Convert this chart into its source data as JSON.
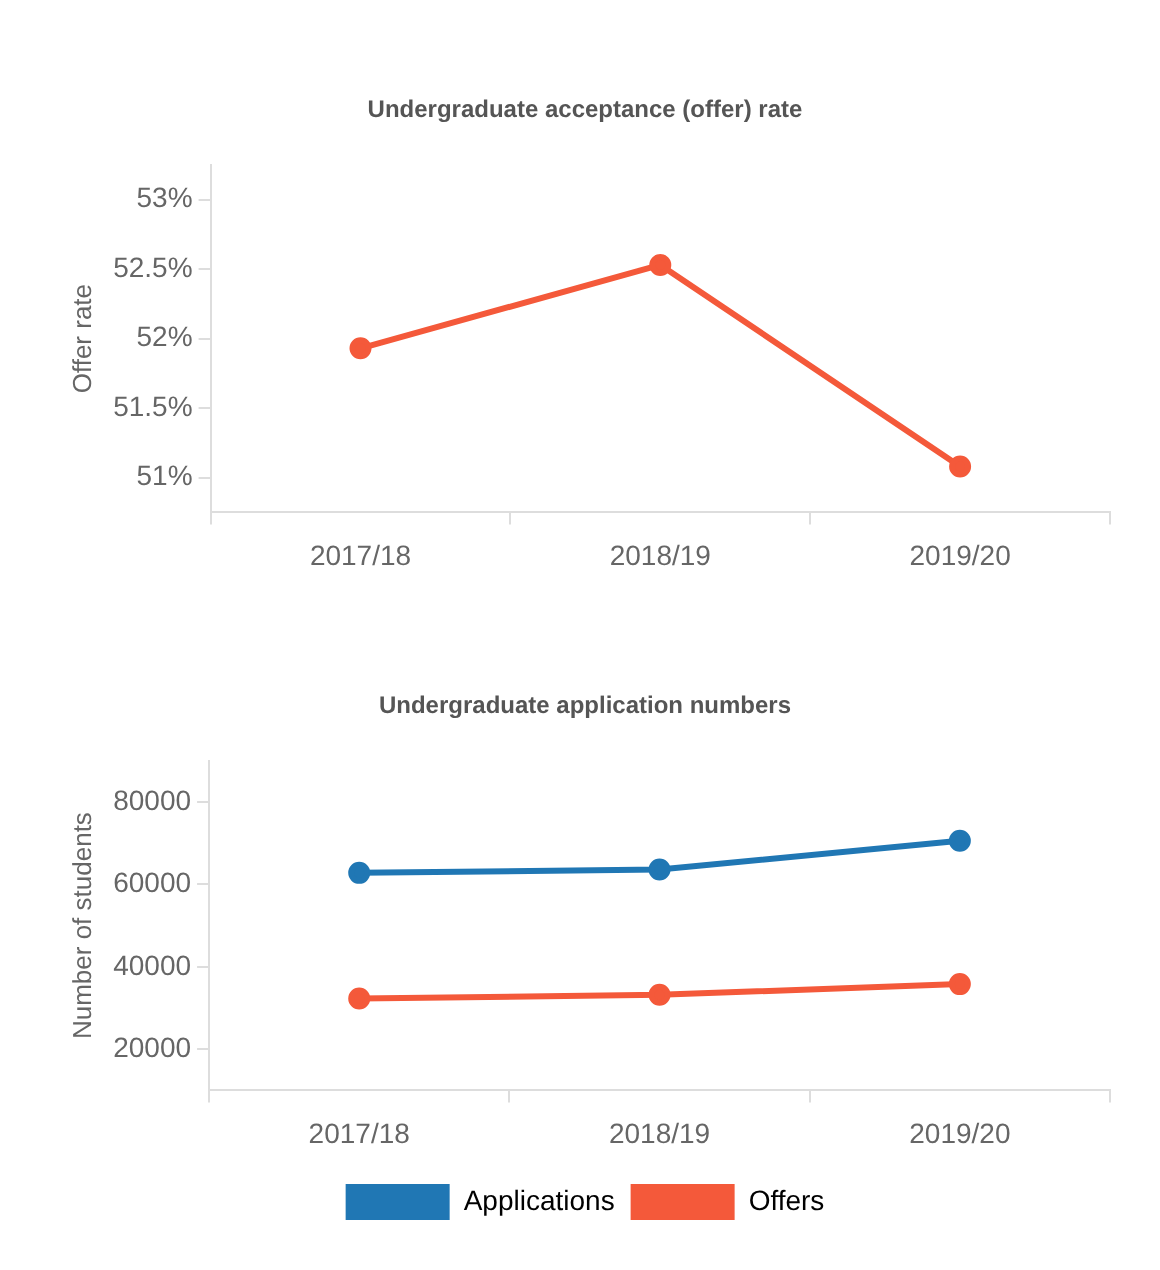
{
  "chart_data": [
    {
      "type": "line",
      "title": "Undergraduate acceptance (offer) rate",
      "ylabel": "Offer rate",
      "categories": [
        "2017/18",
        "2018/19",
        "2019/20"
      ],
      "series": [
        {
          "color": "#f4593a",
          "values": [
            51.93,
            52.53,
            51.08
          ]
        }
      ],
      "ylim": [
        50.75,
        53.25
      ],
      "yticks": [
        {
          "value": 51,
          "label": "51%"
        },
        {
          "value": 51.5,
          "label": "51.5%"
        },
        {
          "value": 52,
          "label": "52%"
        },
        {
          "value": 52.5,
          "label": "52.5%"
        },
        {
          "value": 53,
          "label": "53%"
        }
      ],
      "grid": false,
      "legend": false,
      "marker": "circle",
      "line_style": "solid"
    },
    {
      "type": "line",
      "title": "Undergraduate application numbers",
      "ylabel": "Number of students",
      "categories": [
        "2017/18",
        "2018/19",
        "2019/20"
      ],
      "series": [
        {
          "name": "Applications",
          "color": "#2077b4",
          "values": [
            62800,
            63600,
            70600
          ]
        },
        {
          "name": "Offers",
          "color": "#f4593a",
          "values": [
            32300,
            33200,
            35800
          ]
        }
      ],
      "ylim": [
        10000,
        90000
      ],
      "yticks": [
        20000,
        40000,
        60000,
        80000
      ],
      "grid": false,
      "legend": "bottom",
      "marker": "circle",
      "line_style": "solid"
    }
  ]
}
